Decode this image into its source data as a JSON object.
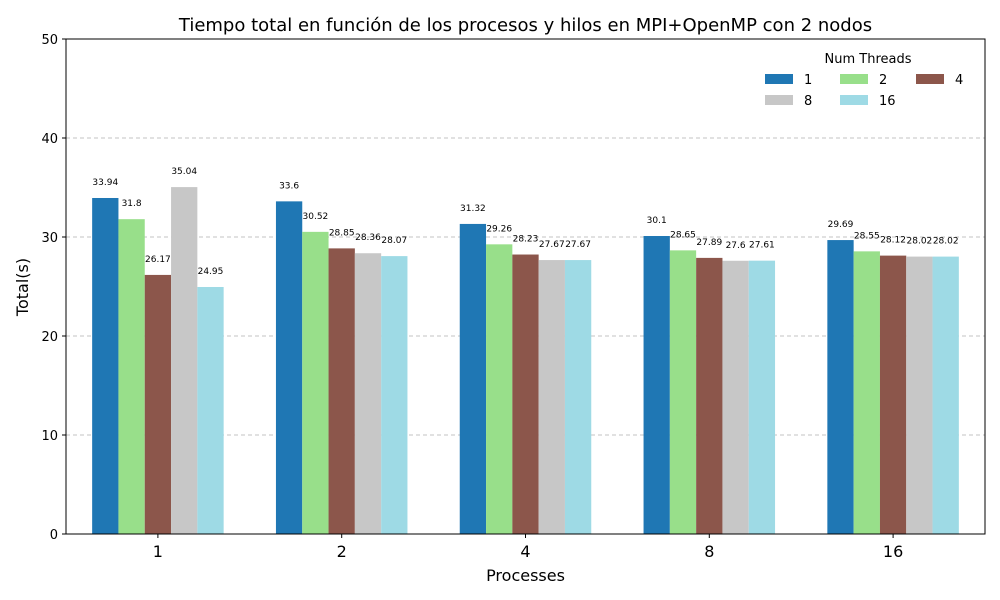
{
  "chart_data": {
    "type": "bar",
    "title": "Tiempo total en función de los procesos y hilos en MPI+OpenMP con 2 nodos",
    "xlabel": "Processes",
    "ylabel": "Total(s)",
    "categories": [
      "1",
      "2",
      "4",
      "8",
      "16"
    ],
    "ylim": [
      0,
      50
    ],
    "yticks": [
      0,
      10,
      20,
      30,
      40,
      50
    ],
    "grid": "y-dashed",
    "legend": {
      "title": "Num Threads",
      "placement": "top-right",
      "columns": 3
    },
    "series": [
      {
        "name": "1",
        "color": "#1f77b4",
        "values": [
          33.94,
          33.6,
          31.32,
          30.1,
          29.69
        ]
      },
      {
        "name": "2",
        "color": "#98df8a",
        "values": [
          31.8,
          30.52,
          29.26,
          28.65,
          28.55
        ]
      },
      {
        "name": "4",
        "color": "#8c564b",
        "values": [
          26.17,
          28.85,
          28.23,
          27.89,
          28.12
        ]
      },
      {
        "name": "8",
        "color": "#c7c7c7",
        "values": [
          35.04,
          28.36,
          27.67,
          27.6,
          28.02
        ]
      },
      {
        "name": "16",
        "color": "#9edae5",
        "values": [
          24.95,
          28.07,
          27.67,
          27.61,
          28.02
        ]
      }
    ]
  }
}
